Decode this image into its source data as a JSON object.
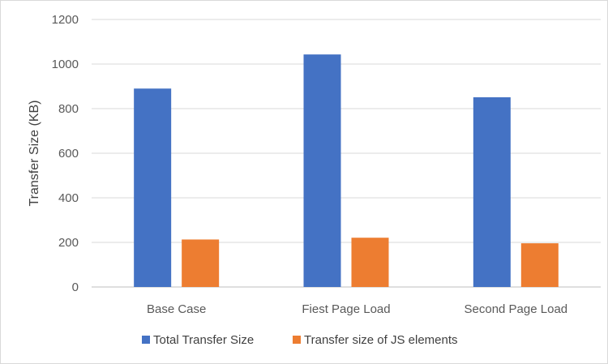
{
  "chart_data": {
    "type": "bar",
    "title": "",
    "xlabel": "",
    "ylabel": "Transfer Size (KB)",
    "categories": [
      "Base Case",
      "Fiest Page Load",
      "Second Page Load"
    ],
    "series": [
      {
        "name": "Total Transfer Size",
        "values": [
          890,
          1043,
          851
        ],
        "color": "#4472c4"
      },
      {
        "name": "Transfer size of JS elements",
        "values": [
          213,
          221,
          196
        ],
        "color": "#ed7d31"
      }
    ],
    "ylim": [
      0,
      1200
    ],
    "yticks": [
      0,
      200,
      400,
      600,
      800,
      1000,
      1200
    ],
    "grid": true,
    "legend_position": "bottom"
  }
}
